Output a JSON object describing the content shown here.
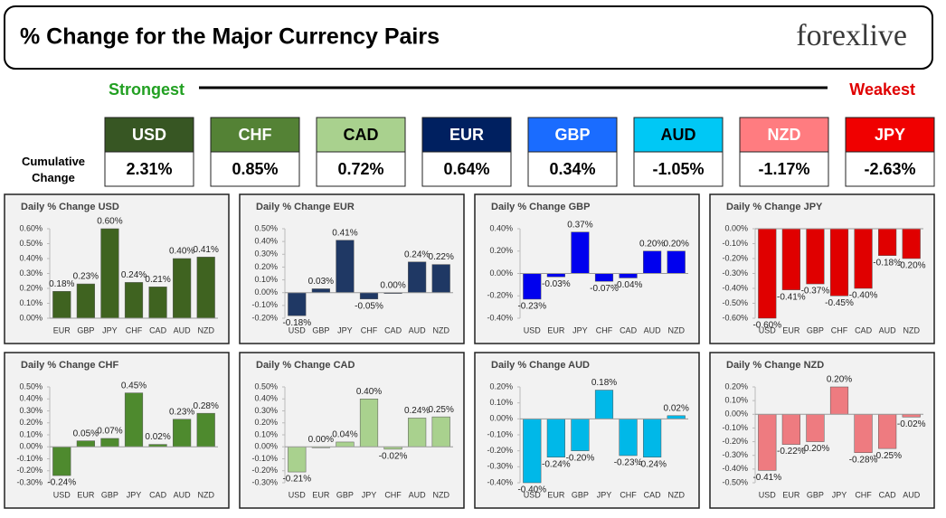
{
  "header": {
    "title": "% Change for the Major Currency Pairs",
    "logo": "forexlive"
  },
  "strongest": "Strongest",
  "weakest": "Weakest",
  "cumulative_label": "Cumulative Change",
  "summary": {
    "currencies": [
      "USD",
      "CHF",
      "CAD",
      "EUR",
      "GBP",
      "AUD",
      "NZD",
      "JPY"
    ],
    "changes": [
      "2.31%",
      "0.85%",
      "0.72%",
      "0.64%",
      "0.34%",
      "-1.05%",
      "-1.17%",
      "-2.63%"
    ],
    "colors": [
      "#375623",
      "#548235",
      "#a9d18e",
      "#002060",
      "#1a6cff",
      "#00c8f5",
      "#ff7c80",
      "#f00000"
    ],
    "text_colors": [
      "#ffffff",
      "#ffffff",
      "#000000",
      "#ffffff",
      "#ffffff",
      "#000000",
      "#ffffff",
      "#ffffff"
    ]
  },
  "chart_data": [
    {
      "type": "bar",
      "title": "Daily % Change USD",
      "color": "#3f6320",
      "categories": [
        "EUR",
        "GBP",
        "JPY",
        "CHF",
        "CAD",
        "AUD",
        "NZD"
      ],
      "values": [
        0.18,
        0.23,
        0.6,
        0.24,
        0.21,
        0.4,
        0.41
      ],
      "value_labels": [
        "0.18%",
        "0.23%",
        "0.60%",
        "0.24%",
        "0.21%",
        "0.40%",
        "0.41%"
      ],
      "ylim": [
        0,
        0.6
      ],
      "yticks": [
        {
          "value": 0,
          "label": "0.00%"
        },
        {
          "value": 0.1,
          "label": "0.10%"
        },
        {
          "value": 0.2,
          "label": "0.20%"
        },
        {
          "value": 0.3,
          "label": "0.30%"
        },
        {
          "value": 0.4,
          "label": "0.40%"
        },
        {
          "value": 0.5,
          "label": "0.50%"
        },
        {
          "value": 0.6,
          "label": "0.60%"
        }
      ]
    },
    {
      "type": "bar",
      "title": "Daily % Change EUR",
      "color": "#1f3864",
      "categories": [
        "USD",
        "GBP",
        "JPY",
        "CHF",
        "CAD",
        "AUD",
        "NZD"
      ],
      "values": [
        -0.18,
        0.03,
        0.41,
        -0.05,
        0.0,
        0.24,
        0.22
      ],
      "value_labels": [
        "-0.18%",
        "0.03%",
        "0.41%",
        "-0.05%",
        "0.00%",
        "0.24%",
        "0.22%"
      ],
      "ylim": [
        -0.2,
        0.5
      ],
      "yticks": [
        {
          "value": -0.2,
          "label": "-0.20%"
        },
        {
          "value": -0.1,
          "label": "-0.10%"
        },
        {
          "value": 0,
          "label": "0.00%"
        },
        {
          "value": 0.1,
          "label": "0.10%"
        },
        {
          "value": 0.2,
          "label": "0.20%"
        },
        {
          "value": 0.3,
          "label": "0.30%"
        },
        {
          "value": 0.4,
          "label": "0.40%"
        },
        {
          "value": 0.5,
          "label": "0.50%"
        }
      ]
    },
    {
      "type": "bar",
      "title": "Daily % Change GBP",
      "color": "#0000ee",
      "categories": [
        "USD",
        "EUR",
        "JPY",
        "CHF",
        "CAD",
        "AUD",
        "NZD"
      ],
      "values": [
        -0.23,
        -0.03,
        0.37,
        -0.07,
        -0.04,
        0.2,
        0.2
      ],
      "value_labels": [
        "-0.23%",
        "-0.03%",
        "0.37%",
        "-0.07%",
        "-0.04%",
        "0.20%",
        "0.20%"
      ],
      "ylim": [
        -0.4,
        0.4
      ],
      "yticks": [
        {
          "value": -0.4,
          "label": "-0.40%"
        },
        {
          "value": -0.2,
          "label": "-0.20%"
        },
        {
          "value": 0,
          "label": "0.00%"
        },
        {
          "value": 0.2,
          "label": "0.20%"
        },
        {
          "value": 0.4,
          "label": "0.40%"
        }
      ]
    },
    {
      "type": "bar",
      "title": "Daily % Change JPY",
      "color": "#e00000",
      "categories": [
        "USD",
        "EUR",
        "GBP",
        "CHF",
        "CAD",
        "AUD",
        "NZD"
      ],
      "values": [
        -0.6,
        -0.41,
        -0.37,
        -0.45,
        -0.4,
        -0.18,
        -0.2
      ],
      "value_labels": [
        "-0.60%",
        "-0.41%",
        "-0.37%",
        "-0.45%",
        "-0.40%",
        "-0.18%",
        "-0.20%"
      ],
      "ylim": [
        -0.6,
        0
      ],
      "yticks": [
        {
          "value": 0,
          "label": "0.00%"
        },
        {
          "value": -0.1,
          "label": "-0.10%"
        },
        {
          "value": -0.2,
          "label": "-0.20%"
        },
        {
          "value": -0.3,
          "label": "-0.30%"
        },
        {
          "value": -0.4,
          "label": "-0.40%"
        },
        {
          "value": -0.5,
          "label": "-0.50%"
        },
        {
          "value": -0.6,
          "label": "-0.60%"
        }
      ]
    },
    {
      "type": "bar",
      "title": "Daily % Change CHF",
      "color": "#4e8a2e",
      "categories": [
        "USD",
        "EUR",
        "GBP",
        "JPY",
        "CAD",
        "AUD",
        "NZD"
      ],
      "values": [
        -0.24,
        0.05,
        0.07,
        0.45,
        0.02,
        0.23,
        0.28
      ],
      "value_labels": [
        "-0.24%",
        "0.05%",
        "0.07%",
        "0.45%",
        "0.02%",
        "0.23%",
        "0.28%"
      ],
      "ylim": [
        -0.3,
        0.5
      ],
      "yticks": [
        {
          "value": -0.3,
          "label": "-0.30%"
        },
        {
          "value": -0.2,
          "label": "-0.20%"
        },
        {
          "value": -0.1,
          "label": "-0.10%"
        },
        {
          "value": 0,
          "label": "0.00%"
        },
        {
          "value": 0.1,
          "label": "0.10%"
        },
        {
          "value": 0.2,
          "label": "0.20%"
        },
        {
          "value": 0.3,
          "label": "0.30%"
        },
        {
          "value": 0.4,
          "label": "0.40%"
        },
        {
          "value": 0.5,
          "label": "0.50%"
        }
      ]
    },
    {
      "type": "bar",
      "title": "Daily % Change CAD",
      "color": "#a9d18e",
      "categories": [
        "USD",
        "EUR",
        "GBP",
        "JPY",
        "CHF",
        "AUD",
        "NZD"
      ],
      "values": [
        -0.21,
        0.0,
        0.04,
        0.4,
        -0.02,
        0.24,
        0.25
      ],
      "value_labels": [
        "-0.21%",
        "0.00%",
        "0.04%",
        "0.40%",
        "-0.02%",
        "0.24%",
        "0.25%"
      ],
      "ylim": [
        -0.3,
        0.5
      ],
      "yticks": [
        {
          "value": -0.3,
          "label": "-0.30%"
        },
        {
          "value": -0.2,
          "label": "-0.20%"
        },
        {
          "value": -0.1,
          "label": "-0.10%"
        },
        {
          "value": 0,
          "label": "0.00%"
        },
        {
          "value": 0.1,
          "label": "0.10%"
        },
        {
          "value": 0.2,
          "label": "0.20%"
        },
        {
          "value": 0.3,
          "label": "0.30%"
        },
        {
          "value": 0.4,
          "label": "0.40%"
        },
        {
          "value": 0.5,
          "label": "0.50%"
        }
      ]
    },
    {
      "type": "bar",
      "title": "Daily % Change AUD",
      "color": "#00b8e8",
      "categories": [
        "USD",
        "EUR",
        "GBP",
        "JPY",
        "CHF",
        "CAD",
        "NZD"
      ],
      "values": [
        -0.4,
        -0.24,
        -0.2,
        0.18,
        -0.23,
        -0.24,
        0.02
      ],
      "value_labels": [
        "-0.40%",
        "-0.24%",
        "-0.20%",
        "0.18%",
        "-0.23%",
        "-0.24%",
        "0.02%"
      ],
      "ylim": [
        -0.4,
        0.2
      ],
      "yticks": [
        {
          "value": -0.4,
          "label": "-0.40%"
        },
        {
          "value": -0.3,
          "label": "-0.30%"
        },
        {
          "value": -0.2,
          "label": "-0.20%"
        },
        {
          "value": -0.1,
          "label": "-0.10%"
        },
        {
          "value": 0,
          "label": "0.00%"
        },
        {
          "value": 0.1,
          "label": "0.10%"
        },
        {
          "value": 0.2,
          "label": "0.20%"
        }
      ]
    },
    {
      "type": "bar",
      "title": "Daily % Change NZD",
      "color": "#ee7b80",
      "categories": [
        "USD",
        "EUR",
        "GBP",
        "JPY",
        "CHF",
        "CAD",
        "AUD"
      ],
      "values": [
        -0.41,
        -0.22,
        -0.2,
        0.2,
        -0.28,
        -0.25,
        -0.02
      ],
      "value_labels": [
        "-0.41%",
        "-0.22%",
        "-0.20%",
        "0.20%",
        "-0.28%",
        "-0.25%",
        "-0.02%"
      ],
      "ylim": [
        -0.5,
        0.2
      ],
      "yticks": [
        {
          "value": -0.5,
          "label": "-0.50%"
        },
        {
          "value": -0.4,
          "label": "-0.40%"
        },
        {
          "value": -0.3,
          "label": "-0.30%"
        },
        {
          "value": -0.2,
          "label": "-0.20%"
        },
        {
          "value": -0.1,
          "label": "-0.10%"
        },
        {
          "value": 0,
          "label": "0.00%"
        },
        {
          "value": 0.1,
          "label": "0.10%"
        },
        {
          "value": 0.2,
          "label": "0.20%"
        }
      ]
    }
  ]
}
